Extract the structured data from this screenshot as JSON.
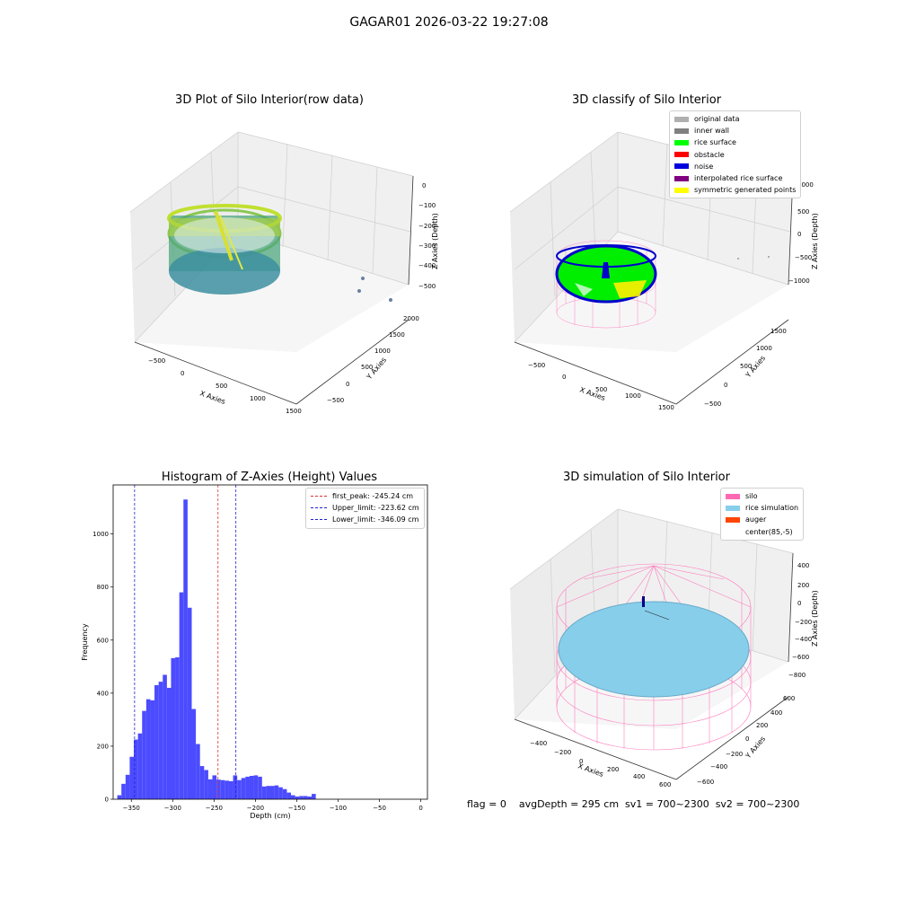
{
  "figure": {
    "suptitle": "GAGAR01 2026-03-22 19:27:08",
    "status_line": "flag = 0    avgDepth = 295 cm  sv1 = 700~2300  sv2 = 700~2300"
  },
  "colors": {
    "histogram": "#4b4bff",
    "first_peak": "#e03030",
    "limits": "#2020d0",
    "original_data": "#b0b0b0",
    "inner_wall": "#808080",
    "rice_surface": "#00ff00",
    "obstacle": "#ff0000",
    "noise": "#0000dd",
    "interpolated_rice_surface": "#800080",
    "symmetric_generated_points": "#ffff00",
    "silo": "#ff69b4",
    "rice_simulation": "#87ceeb",
    "auger": "#ff4500"
  },
  "chart_data": [
    {
      "type": "scatter",
      "projection": "3d",
      "title": "3D Plot of Silo Interior(row data)",
      "xlabel": "X Axies",
      "ylabel": "Y Axies",
      "zlabel": "Z Axies (Depth)",
      "x_ticks": [
        "−500",
        "0",
        "500",
        "1000",
        "1500"
      ],
      "y_ticks": [
        "−500",
        "0",
        "500",
        "1000",
        "1500",
        "2000"
      ],
      "z_ticks": [
        "0",
        "−100",
        "−200",
        "−300",
        "−400",
        "−500"
      ],
      "colormap": "viridis",
      "description_series": "ring of points around z −100 to −500, three outlier points near y 1200–1600"
    },
    {
      "type": "scatter",
      "projection": "3d",
      "title": "3D classify of Silo Interior",
      "xlabel": "X Axies",
      "ylabel": "Y Axies",
      "zlabel": "Z Axies (Depth)",
      "x_ticks": [
        "−500",
        "0",
        "500",
        "1000",
        "1500"
      ],
      "y_ticks": [
        "−500",
        "0",
        "500",
        "1000",
        "1500"
      ],
      "z_ticks": [
        "1000",
        "500",
        "0",
        "−500",
        "−1000"
      ],
      "legend": [
        "original data",
        "inner wall",
        "rice surface",
        "obstacle",
        "noise",
        "interpolated rice surface",
        "symmetric generated points"
      ],
      "legend_position": "top-right"
    },
    {
      "type": "bar",
      "title": "Histogram of Z-Axies (Height) Values",
      "xlabel": "Depth (cm)",
      "ylabel": "Frequency",
      "xlim": [
        -372,
        8
      ],
      "ylim": [
        0,
        1185
      ],
      "x_ticks": [
        "−350",
        "−300",
        "−250",
        "−200",
        "−150",
        "−100",
        "−50",
        "0"
      ],
      "y_ticks": [
        "0",
        "200",
        "400",
        "600",
        "800",
        "1000"
      ],
      "bin_start": -367,
      "bin_width": 5,
      "values": [
        15,
        58,
        92,
        160,
        225,
        248,
        333,
        377,
        373,
        430,
        443,
        469,
        420,
        532,
        535,
        780,
        1130,
        722,
        340,
        208,
        125,
        110,
        75,
        90,
        74,
        72,
        70,
        68,
        90,
        72,
        80,
        85,
        88,
        90,
        85,
        48,
        50,
        50,
        52,
        45,
        38,
        25,
        15,
        10,
        12,
        12,
        10,
        20
      ],
      "lines": [
        {
          "label": "first_peak: -245.24 cm",
          "x": -245.24,
          "color": "#e03030"
        },
        {
          "label": "Upper_limit: -223.62 cm",
          "x": -223.62,
          "color": "#2020d0"
        },
        {
          "label": "Lower_limit: -346.09 cm",
          "x": -346.09,
          "color": "#2020d0"
        }
      ],
      "legend_position": "top-right"
    },
    {
      "type": "scatter",
      "projection": "3d",
      "title": "3D simulation of Silo Interior",
      "xlabel": "X Axies",
      "ylabel": "Y Axies",
      "zlabel": "Z Axies (Depth)",
      "x_ticks": [
        "−400",
        "−200",
        "0",
        "200",
        "400",
        "600"
      ],
      "y_ticks": [
        "−600",
        "−400",
        "−200",
        "0",
        "200",
        "400",
        "600"
      ],
      "z_ticks": [
        "400",
        "200",
        "0",
        "−200",
        "−400",
        "−600",
        "−800"
      ],
      "legend": [
        "silo",
        "rice simulation",
        "auger",
        "center(85,-5)"
      ],
      "legend_position": "top-right"
    }
  ]
}
